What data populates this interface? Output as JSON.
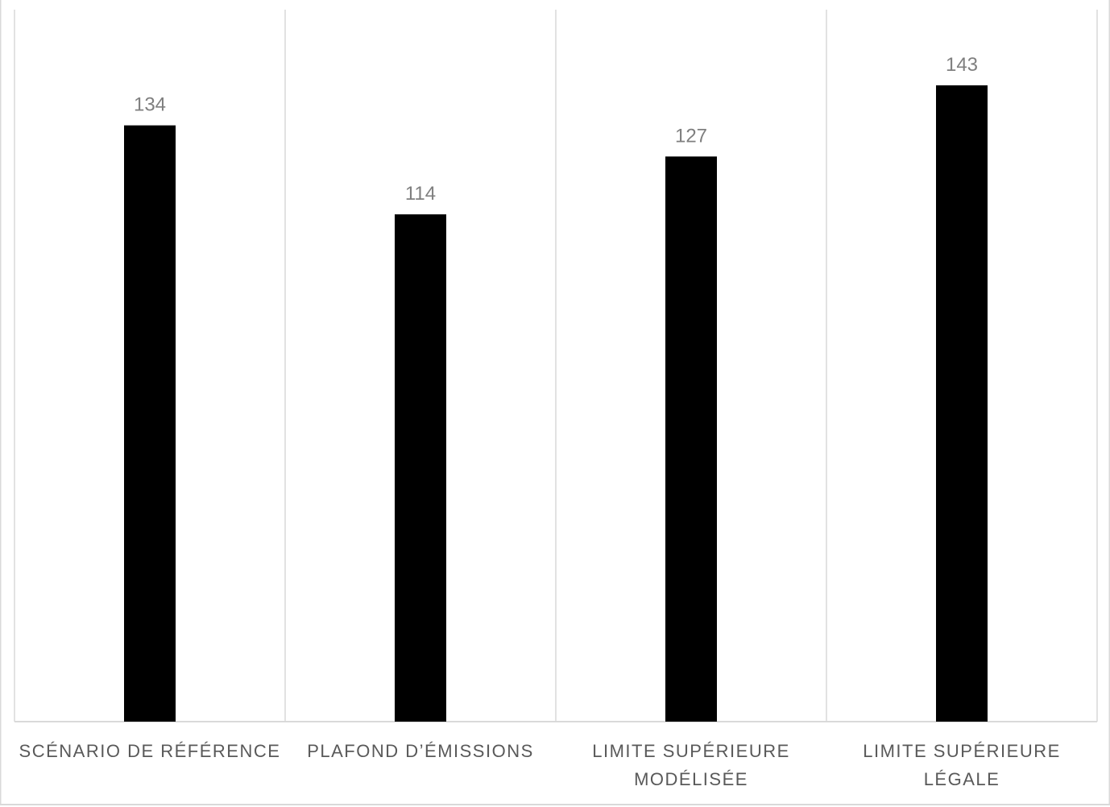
{
  "chart_data": {
    "type": "bar",
    "categories": [
      "SCÉNARIO DE RÉFÉRENCE",
      "PLAFOND D’ÉMISSIONS",
      "LIMITE SUPÉRIEURE MODÉLISÉE",
      "LIMITE SUPÉRIEURE LÉGALE"
    ],
    "values": [
      134,
      114,
      127,
      143
    ],
    "color": "#000000",
    "ylim": [
      0,
      160
    ]
  }
}
